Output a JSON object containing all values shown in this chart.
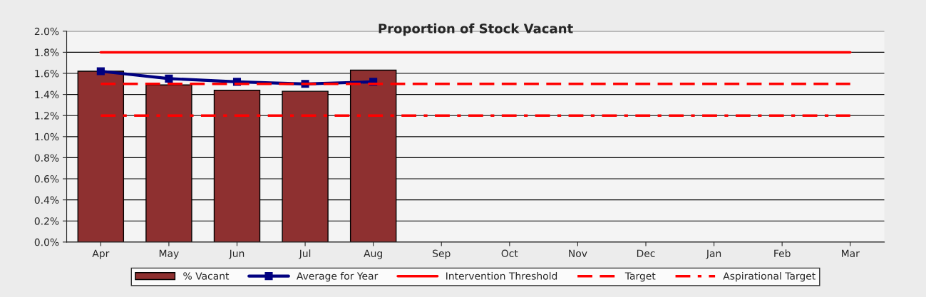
{
  "chart_data": {
    "type": "bar",
    "title": "Proportion of Stock Vacant",
    "categories": [
      "Apr",
      "May",
      "Jun",
      "Jul",
      "Aug",
      "Sep",
      "Oct",
      "Nov",
      "Dec",
      "Jan",
      "Feb",
      "Mar"
    ],
    "series": [
      {
        "name": "% Vacant",
        "color": "#8e3030",
        "values": [
          1.62,
          1.49,
          1.44,
          1.43,
          1.63,
          null,
          null,
          null,
          null,
          null,
          null,
          null
        ]
      },
      {
        "name": "Average for Year",
        "type": "line",
        "color": "#000080",
        "marker": "square",
        "values": [
          1.62,
          1.55,
          1.52,
          1.5,
          1.52,
          null,
          null,
          null,
          null,
          null,
          null,
          null
        ]
      },
      {
        "name": "Intervention Threshold",
        "type": "line",
        "color": "#ff0000",
        "line_style": "solid",
        "values": [
          1.8,
          1.8,
          1.8,
          1.8,
          1.8,
          1.8,
          1.8,
          1.8,
          1.8,
          1.8,
          1.8,
          1.8
        ]
      },
      {
        "name": "Target",
        "type": "line",
        "color": "#ff0000",
        "line_style": "dashed",
        "values": [
          1.5,
          1.5,
          1.5,
          1.5,
          1.5,
          1.5,
          1.5,
          1.5,
          1.5,
          1.5,
          1.5,
          1.5
        ]
      },
      {
        "name": "Aspirational Target",
        "type": "line",
        "color": "#ff0000",
        "line_style": "dashdot",
        "values": [
          1.2,
          1.2,
          1.2,
          1.2,
          1.2,
          1.2,
          1.2,
          1.2,
          1.2,
          1.2,
          1.2,
          1.2
        ]
      }
    ],
    "ylim": [
      0,
      2.0
    ],
    "yticks": [
      {
        "value": 0,
        "label": "0.0%"
      },
      {
        "value": 0.2,
        "label": "0.2%"
      },
      {
        "value": 0.4,
        "label": "0.4%"
      },
      {
        "value": 0.6,
        "label": "0.6%"
      },
      {
        "value": 0.8,
        "label": "0.8%"
      },
      {
        "value": 1.0,
        "label": "1.0%"
      },
      {
        "value": 1.2,
        "label": "1.2%"
      },
      {
        "value": 1.4,
        "label": "1.4%"
      },
      {
        "value": 1.6,
        "label": "1.6%"
      },
      {
        "value": 1.8,
        "label": "1.8%"
      },
      {
        "value": 2.0,
        "label": "2.0%"
      }
    ],
    "grid": "y",
    "legend": "bottom"
  }
}
